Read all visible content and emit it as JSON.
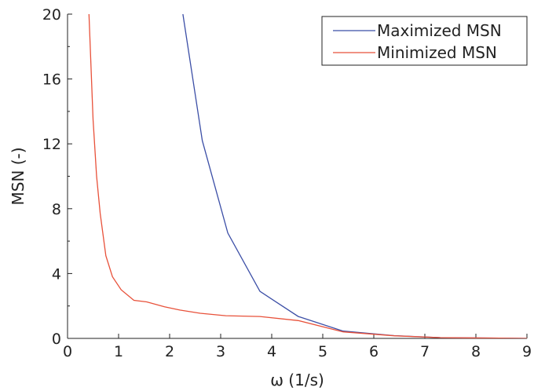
{
  "chart_data": {
    "type": "line",
    "title": "",
    "xlabel": "ω (1/s)",
    "ylabel": "MSN (-)",
    "xlim": [
      0,
      9
    ],
    "ylim": [
      0,
      20
    ],
    "x_ticks": [
      0,
      1,
      2,
      3,
      4,
      5,
      6,
      7,
      8,
      9
    ],
    "y_ticks": [
      0,
      4,
      8,
      12,
      16,
      20
    ],
    "x_tick_labels": [
      "0",
      "1",
      "2",
      "3",
      "4",
      "5",
      "6",
      "7",
      "8",
      "9"
    ],
    "y_tick_labels": [
      "0",
      "4",
      "8",
      "12",
      "16",
      "20"
    ],
    "grid": false,
    "legend_position": "top-right",
    "series": [
      {
        "name": "Maximized MSN",
        "color": "#3b4ea6",
        "x": [
          2.26,
          2.64,
          3.14,
          3.77,
          4.52,
          5.4,
          6.4,
          7.3,
          9.0
        ],
        "y": [
          20.0,
          12.2,
          6.5,
          2.9,
          1.35,
          0.45,
          0.17,
          0.05,
          0.0
        ]
      },
      {
        "name": "Minimized MSN",
        "color": "#e8513a",
        "x": [
          0.42,
          0.5,
          0.57,
          0.64,
          0.75,
          0.88,
          1.05,
          1.3,
          1.55,
          1.9,
          2.2,
          2.6,
          3.1,
          3.77,
          4.52,
          5.4,
          6.4,
          7.3,
          9.0
        ],
        "y": [
          20.0,
          13.5,
          10.0,
          7.7,
          5.1,
          3.8,
          3.0,
          2.35,
          2.25,
          1.95,
          1.75,
          1.55,
          1.4,
          1.35,
          1.1,
          0.4,
          0.16,
          0.05,
          0.0
        ]
      }
    ]
  }
}
